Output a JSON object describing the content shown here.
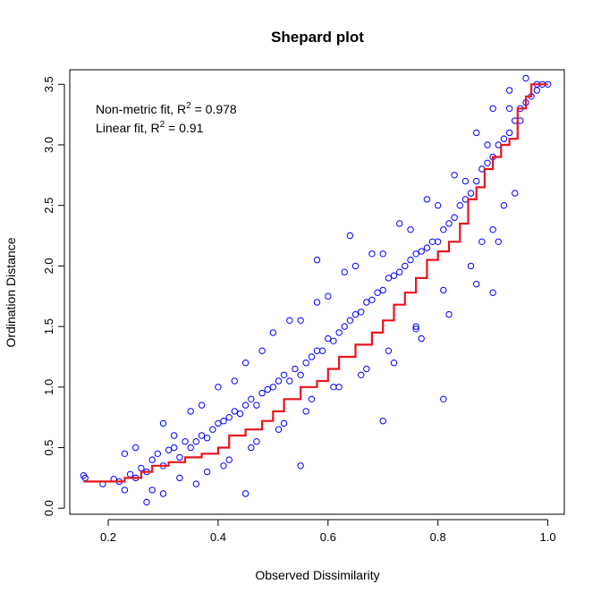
{
  "chart_data": {
    "type": "scatter",
    "title": "Shepard plot",
    "xlabel": "Observed Dissimilarity",
    "ylabel": "Ordination Distance",
    "xlim": [
      0.13,
      1.03
    ],
    "ylim": [
      -0.05,
      3.62
    ],
    "xticks": [
      "0.2",
      "0.4",
      "0.6",
      "0.8",
      "1.0"
    ],
    "yticks": [
      "0.0",
      "0.5",
      "1.0",
      "1.5",
      "2.0",
      "2.5",
      "3.0",
      "3.5"
    ],
    "grid": false,
    "annotations": [
      {
        "prefix": "Non-metric fit, R",
        "sup": "2",
        "suffix": " = 0.978"
      },
      {
        "prefix": "Linear fit, R",
        "sup": "2",
        "suffix": " = 0.91"
      }
    ],
    "colors": {
      "points": "#0000ff",
      "fit": "#e8141e"
    },
    "series": [
      {
        "kind": "points",
        "x": [
          0.155,
          0.158,
          0.19,
          0.21,
          0.22,
          0.23,
          0.24,
          0.25,
          0.26,
          0.27,
          0.28,
          0.29,
          0.3,
          0.31,
          0.32,
          0.33,
          0.34,
          0.35,
          0.36,
          0.37,
          0.38,
          0.39,
          0.4,
          0.41,
          0.42,
          0.43,
          0.44,
          0.45,
          0.46,
          0.47,
          0.48,
          0.49,
          0.5,
          0.51,
          0.52,
          0.53,
          0.54,
          0.55,
          0.56,
          0.57,
          0.58,
          0.59,
          0.6,
          0.61,
          0.62,
          0.63,
          0.64,
          0.65,
          0.66,
          0.67,
          0.68,
          0.69,
          0.7,
          0.71,
          0.72,
          0.73,
          0.74,
          0.75,
          0.76,
          0.77,
          0.78,
          0.79,
          0.8,
          0.81,
          0.82,
          0.83,
          0.84,
          0.85,
          0.86,
          0.87,
          0.88,
          0.89,
          0.9,
          0.91,
          0.92,
          0.93,
          0.94,
          0.95,
          0.96,
          0.97,
          0.98,
          0.99,
          1.0,
          0.25,
          0.28,
          0.3,
          0.33,
          0.35,
          0.38,
          0.4,
          0.42,
          0.45,
          0.47,
          0.5,
          0.52,
          0.55,
          0.57,
          0.6,
          0.62,
          0.65,
          0.67,
          0.7,
          0.72,
          0.75,
          0.77,
          0.8,
          0.82,
          0.85,
          0.87,
          0.89,
          0.91,
          0.93,
          0.3,
          0.36,
          0.41,
          0.46,
          0.51,
          0.56,
          0.61,
          0.66,
          0.71,
          0.76,
          0.81,
          0.86,
          0.88,
          0.9,
          0.92,
          0.94,
          0.95,
          0.27,
          0.32,
          0.37,
          0.43,
          0.48,
          0.53,
          0.58,
          0.63,
          0.68,
          0.73,
          0.78,
          0.83,
          0.87,
          0.9,
          0.93,
          0.96,
          0.98,
          0.7,
          0.76,
          0.81,
          0.9,
          0.58,
          0.64,
          0.55,
          0.23,
          0.45
        ],
        "y": [
          0.27,
          0.25,
          0.2,
          0.24,
          0.22,
          0.15,
          0.28,
          0.25,
          0.33,
          0.3,
          0.4,
          0.45,
          0.35,
          0.48,
          0.5,
          0.42,
          0.55,
          0.5,
          0.55,
          0.6,
          0.58,
          0.65,
          0.7,
          0.72,
          0.75,
          0.8,
          0.78,
          0.85,
          0.9,
          0.85,
          0.95,
          0.98,
          1.0,
          1.05,
          1.1,
          1.05,
          1.15,
          1.1,
          1.2,
          1.25,
          1.3,
          1.3,
          1.4,
          1.38,
          1.45,
          1.5,
          1.55,
          1.6,
          1.62,
          1.7,
          1.72,
          1.78,
          1.8,
          1.9,
          1.92,
          1.95,
          2.0,
          2.05,
          2.1,
          2.12,
          2.15,
          2.2,
          2.2,
          2.3,
          2.35,
          2.4,
          2.5,
          2.55,
          2.6,
          2.7,
          2.8,
          2.85,
          2.9,
          3.0,
          3.05,
          3.1,
          3.2,
          3.3,
          3.35,
          3.4,
          3.45,
          3.5,
          3.5,
          0.5,
          0.15,
          0.7,
          0.25,
          0.8,
          0.3,
          1.0,
          0.4,
          1.2,
          0.55,
          1.45,
          0.7,
          1.55,
          0.9,
          1.75,
          1.0,
          2.0,
          1.15,
          2.1,
          1.2,
          2.3,
          1.4,
          2.5,
          1.6,
          2.7,
          1.85,
          3.0,
          2.2,
          3.3,
          0.12,
          0.2,
          0.35,
          0.5,
          0.65,
          0.8,
          1.0,
          1.1,
          1.3,
          1.5,
          1.8,
          2.0,
          2.2,
          2.3,
          2.5,
          2.6,
          3.2,
          0.05,
          0.6,
          0.85,
          1.05,
          1.3,
          1.55,
          1.7,
          1.95,
          2.1,
          2.35,
          2.55,
          2.75,
          3.1,
          3.3,
          3.45,
          3.55,
          3.5,
          0.72,
          1.48,
          0.9,
          1.78,
          2.05,
          2.25,
          0.35,
          0.45,
          0.12
        ]
      },
      {
        "kind": "step",
        "name": "",
        "x": [
          0.155,
          0.23,
          0.26,
          0.28,
          0.31,
          0.34,
          0.37,
          0.4,
          0.42,
          0.45,
          0.48,
          0.5,
          0.52,
          0.55,
          0.58,
          0.6,
          0.62,
          0.65,
          0.68,
          0.7,
          0.72,
          0.74,
          0.76,
          0.78,
          0.8,
          0.82,
          0.84,
          0.855,
          0.87,
          0.885,
          0.9,
          0.915,
          0.93,
          0.945,
          0.96,
          0.97,
          1.0
        ],
        "y": [
          0.22,
          0.25,
          0.3,
          0.35,
          0.38,
          0.42,
          0.45,
          0.5,
          0.6,
          0.65,
          0.72,
          0.8,
          0.9,
          1.0,
          1.05,
          1.15,
          1.25,
          1.35,
          1.45,
          1.55,
          1.68,
          1.78,
          1.9,
          2.05,
          2.12,
          2.2,
          2.35,
          2.55,
          2.65,
          2.8,
          2.9,
          3.0,
          3.05,
          3.3,
          3.4,
          3.5,
          3.5
        ]
      }
    ]
  }
}
